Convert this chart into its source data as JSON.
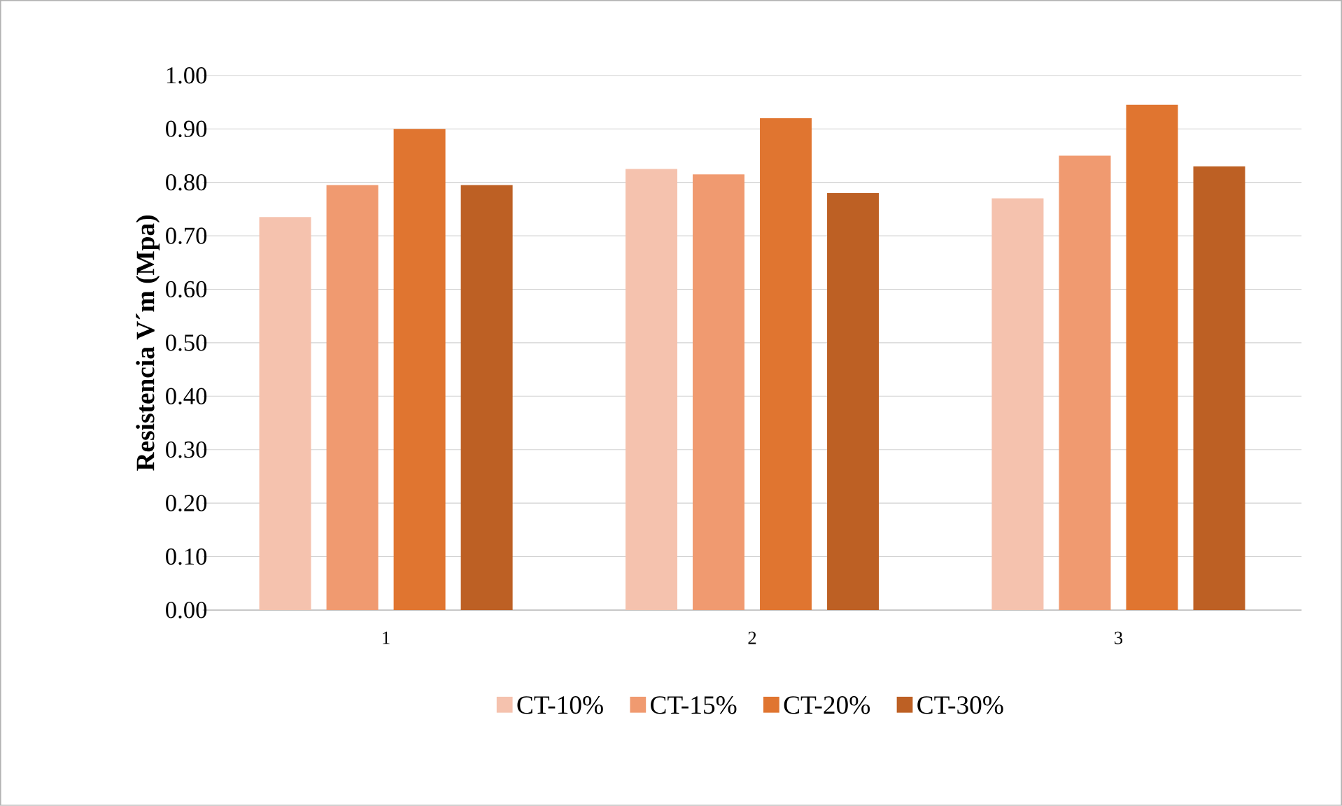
{
  "chart_data": {
    "type": "bar",
    "ylabel": "Resistencia V´m (Mpa)",
    "categories": [
      "1",
      "2",
      "3"
    ],
    "series": [
      {
        "name": "CT-10%",
        "color": "#f5c2ae",
        "values": [
          0.735,
          0.825,
          0.77
        ]
      },
      {
        "name": "CT-15%",
        "color": "#f09a70",
        "values": [
          0.795,
          0.815,
          0.85
        ]
      },
      {
        "name": "CT-20%",
        "color": "#e07530",
        "values": [
          0.9,
          0.92,
          0.945
        ]
      },
      {
        "name": "CT-30%",
        "color": "#bd6024",
        "values": [
          0.795,
          0.78,
          0.83
        ]
      }
    ],
    "ylim": [
      0,
      1
    ],
    "yticks": [
      {
        "value": 0,
        "label": "0.00"
      },
      {
        "value": 0.1,
        "label": "0.10"
      },
      {
        "value": 0.2,
        "label": "0.20"
      },
      {
        "value": 0.3,
        "label": "0.30"
      },
      {
        "value": 0.4,
        "label": "0.40"
      },
      {
        "value": 0.5,
        "label": "0.50"
      },
      {
        "value": 0.6,
        "label": "0.60"
      },
      {
        "value": 0.7,
        "label": "0.70"
      },
      {
        "value": 0.8,
        "label": "0.80"
      },
      {
        "value": 0.9,
        "label": "0.90"
      },
      {
        "value": 1,
        "label": "1.00"
      }
    ],
    "grid": "y",
    "legend": "bottom"
  }
}
